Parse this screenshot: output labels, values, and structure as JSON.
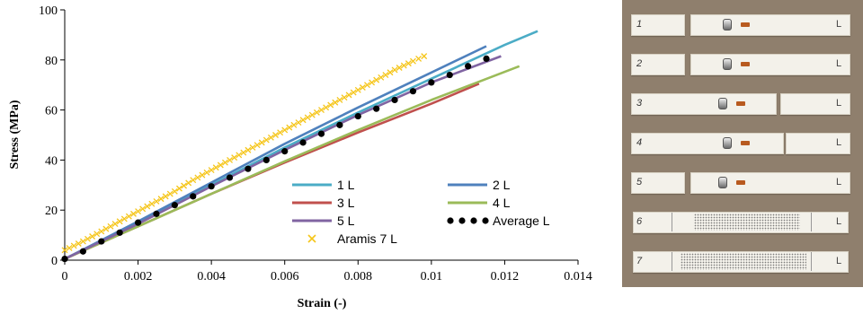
{
  "chart_data": {
    "type": "line",
    "xlabel": "Strain (-)",
    "ylabel": "Stress (MPa)",
    "xlim": [
      0,
      0.014
    ],
    "ylim": [
      0,
      100
    ],
    "x_ticks": [
      "0",
      "0.002",
      "0.004",
      "0.006",
      "0.008",
      "0.01",
      "0.012",
      "0.014"
    ],
    "y_ticks": [
      "0",
      "20",
      "40",
      "60",
      "80",
      "100"
    ],
    "legend_position": "lower-right",
    "series": [
      {
        "name": "1 L",
        "color": "#4bacc6",
        "style": "line",
        "points": [
          [
            0.0,
            0.5
          ],
          [
            0.002,
            15.0
          ],
          [
            0.004,
            30.0
          ],
          [
            0.006,
            45.0
          ],
          [
            0.008,
            59.0
          ],
          [
            0.01,
            72.5
          ],
          [
            0.012,
            86.0
          ],
          [
            0.0129,
            91.5
          ]
        ]
      },
      {
        "name": "2 L",
        "color": "#4f81bd",
        "style": "line",
        "points": [
          [
            0.0,
            0.5
          ],
          [
            0.002,
            15.5
          ],
          [
            0.004,
            31.0
          ],
          [
            0.006,
            46.5
          ],
          [
            0.008,
            61.0
          ],
          [
            0.01,
            75.0
          ],
          [
            0.0115,
            85.5
          ]
        ]
      },
      {
        "name": "3 L",
        "color": "#c0504d",
        "style": "line",
        "points": [
          [
            0.0,
            0.5
          ],
          [
            0.002,
            13.5
          ],
          [
            0.004,
            26.5
          ],
          [
            0.006,
            39.0
          ],
          [
            0.008,
            51.0
          ],
          [
            0.01,
            62.5
          ],
          [
            0.0113,
            70.5
          ]
        ]
      },
      {
        "name": "4 L",
        "color": "#9bbb59",
        "style": "line",
        "points": [
          [
            0.0,
            0.5
          ],
          [
            0.002,
            13.5
          ],
          [
            0.004,
            26.5
          ],
          [
            0.006,
            39.5
          ],
          [
            0.008,
            52.0
          ],
          [
            0.01,
            64.0
          ],
          [
            0.0124,
            77.5
          ]
        ]
      },
      {
        "name": "5 L",
        "color": "#8064a2",
        "style": "line",
        "points": [
          [
            0.0,
            0.5
          ],
          [
            0.002,
            14.5
          ],
          [
            0.004,
            29.5
          ],
          [
            0.006,
            44.0
          ],
          [
            0.008,
            58.0
          ],
          [
            0.01,
            71.0
          ],
          [
            0.0119,
            81.5
          ]
        ]
      },
      {
        "name": "Average L",
        "color": "#000000",
        "style": "dots",
        "points": [
          [
            0.0,
            0.5
          ],
          [
            0.0005,
            3.5
          ],
          [
            0.001,
            7.5
          ],
          [
            0.0015,
            11.0
          ],
          [
            0.002,
            15.0
          ],
          [
            0.0025,
            18.5
          ],
          [
            0.003,
            22.0
          ],
          [
            0.0035,
            25.5
          ],
          [
            0.004,
            29.5
          ],
          [
            0.0045,
            33.0
          ],
          [
            0.005,
            36.5
          ],
          [
            0.0055,
            40.0
          ],
          [
            0.006,
            43.5
          ],
          [
            0.0065,
            47.0
          ],
          [
            0.007,
            50.5
          ],
          [
            0.0075,
            54.0
          ],
          [
            0.008,
            57.5
          ],
          [
            0.0085,
            60.5
          ],
          [
            0.009,
            64.0
          ],
          [
            0.0095,
            67.5
          ],
          [
            0.01,
            71.0
          ],
          [
            0.0105,
            74.0
          ],
          [
            0.011,
            77.5
          ],
          [
            0.0115,
            80.5
          ]
        ]
      },
      {
        "name": "Aramis 7 L",
        "color": "#f5c518",
        "style": "cross",
        "points": [
          [
            0.0,
            4.0
          ],
          [
            0.0005,
            7.5
          ],
          [
            0.001,
            11.5
          ],
          [
            0.0015,
            15.5
          ],
          [
            0.002,
            19.5
          ],
          [
            0.0025,
            23.5
          ],
          [
            0.003,
            27.5
          ],
          [
            0.0035,
            32.0
          ],
          [
            0.004,
            36.0
          ],
          [
            0.0045,
            40.0
          ],
          [
            0.005,
            44.0
          ],
          [
            0.0055,
            48.0
          ],
          [
            0.006,
            52.0
          ],
          [
            0.0065,
            56.0
          ],
          [
            0.007,
            60.0
          ],
          [
            0.0075,
            64.0
          ],
          [
            0.008,
            68.0
          ],
          [
            0.0085,
            72.0
          ],
          [
            0.009,
            76.0
          ],
          [
            0.0095,
            79.5
          ],
          [
            0.0098,
            81.5
          ]
        ]
      }
    ]
  },
  "photo": {
    "strips": [
      {
        "number": "1",
        "right_label": "L"
      },
      {
        "number": "2",
        "right_label": "L"
      },
      {
        "number": "3",
        "right_label": "L"
      },
      {
        "number": "4",
        "right_label": "L"
      },
      {
        "number": "5",
        "right_label": "L"
      },
      {
        "number": "6",
        "right_label": "L"
      },
      {
        "number": "7",
        "right_label": "L"
      }
    ]
  }
}
